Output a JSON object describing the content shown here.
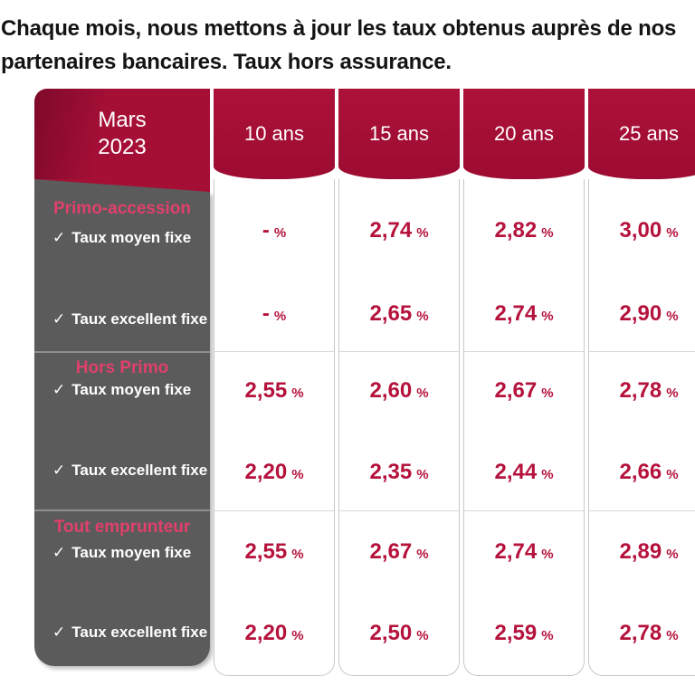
{
  "intro": {
    "line1": "Chaque mois, nous mettons à jour les taux obtenus auprès de nos",
    "line2": "partenaires bancaires. Taux hors assurance."
  },
  "table": {
    "month_line1": "Mars",
    "month_line2": "2023",
    "columns": [
      "10 ans",
      "15 ans",
      "20 ans",
      "25 ans"
    ],
    "checkmark": "✓",
    "percent_suffix": "%",
    "sections": [
      {
        "title": "Primo-accession",
        "rows": [
          {
            "label": "Taux moyen fixe",
            "values": [
              "-",
              "2,74",
              "2,82",
              "3,00"
            ]
          },
          {
            "label": "Taux excellent fixe",
            "values": [
              "-",
              "2,65",
              "2,74",
              "2,90"
            ]
          }
        ]
      },
      {
        "title": "Hors Primo",
        "rows": [
          {
            "label": "Taux moyen fixe",
            "values": [
              "2,55",
              "2,60",
              "2,67",
              "2,78"
            ]
          },
          {
            "label": "Taux excellent fixe",
            "values": [
              "2,20",
              "2,35",
              "2,44",
              "2,66"
            ]
          }
        ]
      },
      {
        "title": "Tout emprunteur",
        "rows": [
          {
            "label": "Taux moyen fixe",
            "values": [
              "2,55",
              "2,67",
              "2,74",
              "2,89"
            ]
          },
          {
            "label": "Taux excellent fixe",
            "values": [
              "2,20",
              "2,50",
              "2,59",
              "2,78"
            ]
          }
        ]
      }
    ],
    "colors": {
      "header_red": "#a50f36",
      "value_red": "#b5123c",
      "sidebar_gray": "#5b5b5b",
      "section_title_pink": "#e0406c"
    }
  },
  "chart_data": {
    "type": "table",
    "title": "Mars 2023 — Taux hors assurance",
    "columns": [
      "10 ans",
      "15 ans",
      "20 ans",
      "25 ans"
    ],
    "rows": [
      {
        "group": "Primo-accession",
        "label": "Taux moyen fixe",
        "values_pct": [
          null,
          2.74,
          2.82,
          3.0
        ]
      },
      {
        "group": "Primo-accession",
        "label": "Taux excellent fixe",
        "values_pct": [
          null,
          2.65,
          2.74,
          2.9
        ]
      },
      {
        "group": "Hors Primo",
        "label": "Taux moyen fixe",
        "values_pct": [
          2.55,
          2.6,
          2.67,
          2.78
        ]
      },
      {
        "group": "Hors Primo",
        "label": "Taux excellent fixe",
        "values_pct": [
          2.2,
          2.35,
          2.44,
          2.66
        ]
      },
      {
        "group": "Tout emprunteur",
        "label": "Taux moyen fixe",
        "values_pct": [
          2.55,
          2.67,
          2.74,
          2.89
        ]
      },
      {
        "group": "Tout emprunteur",
        "label": "Taux excellent fixe",
        "values_pct": [
          2.2,
          2.5,
          2.59,
          2.78
        ]
      }
    ]
  }
}
